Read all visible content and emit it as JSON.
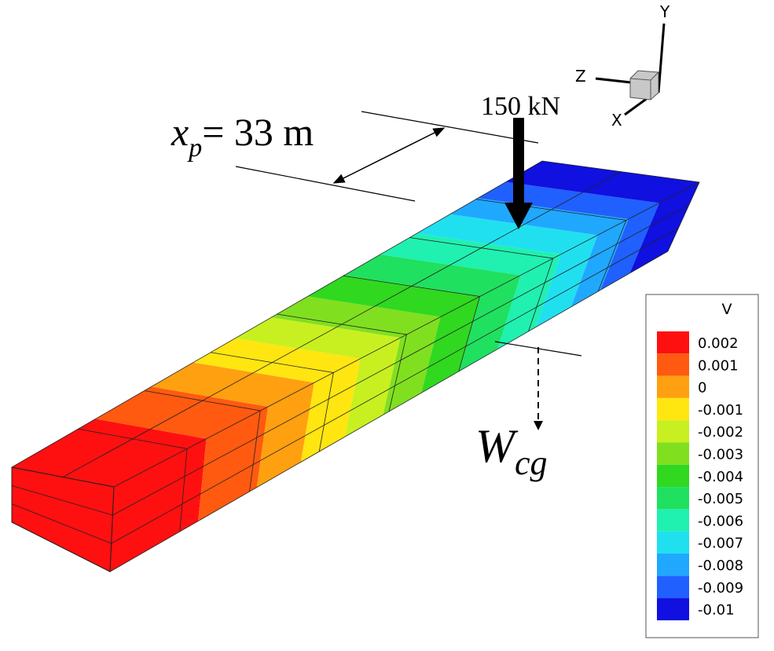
{
  "axes": {
    "y": "Y",
    "z": "Z",
    "x": "X"
  },
  "load": {
    "label": "150 kN"
  },
  "position": {
    "symbol": "x",
    "subscript": "p",
    "rest": "= 33 m"
  },
  "weight": {
    "symbol": "W",
    "subscript": "cg"
  },
  "legend": {
    "title": "V",
    "levels": [
      {
        "label": "0.002",
        "color": "#ff1010"
      },
      {
        "label": "0.001",
        "color": "#ff5a10"
      },
      {
        "label": "0",
        "color": "#ffa010"
      },
      {
        "label": "-0.001",
        "color": "#ffe610"
      },
      {
        "label": "-0.002",
        "color": "#c8f020"
      },
      {
        "label": "-0.003",
        "color": "#80e020"
      },
      {
        "label": "-0.004",
        "color": "#30d820"
      },
      {
        "label": "-0.005",
        "color": "#20e060"
      },
      {
        "label": "-0.006",
        "color": "#20f0b0"
      },
      {
        "label": "-0.007",
        "color": "#20e0f0"
      },
      {
        "label": "-0.008",
        "color": "#20a8ff"
      },
      {
        "label": "-0.009",
        "color": "#2060ff"
      },
      {
        "label": "-0.01",
        "color": "#1010e0"
      }
    ]
  }
}
